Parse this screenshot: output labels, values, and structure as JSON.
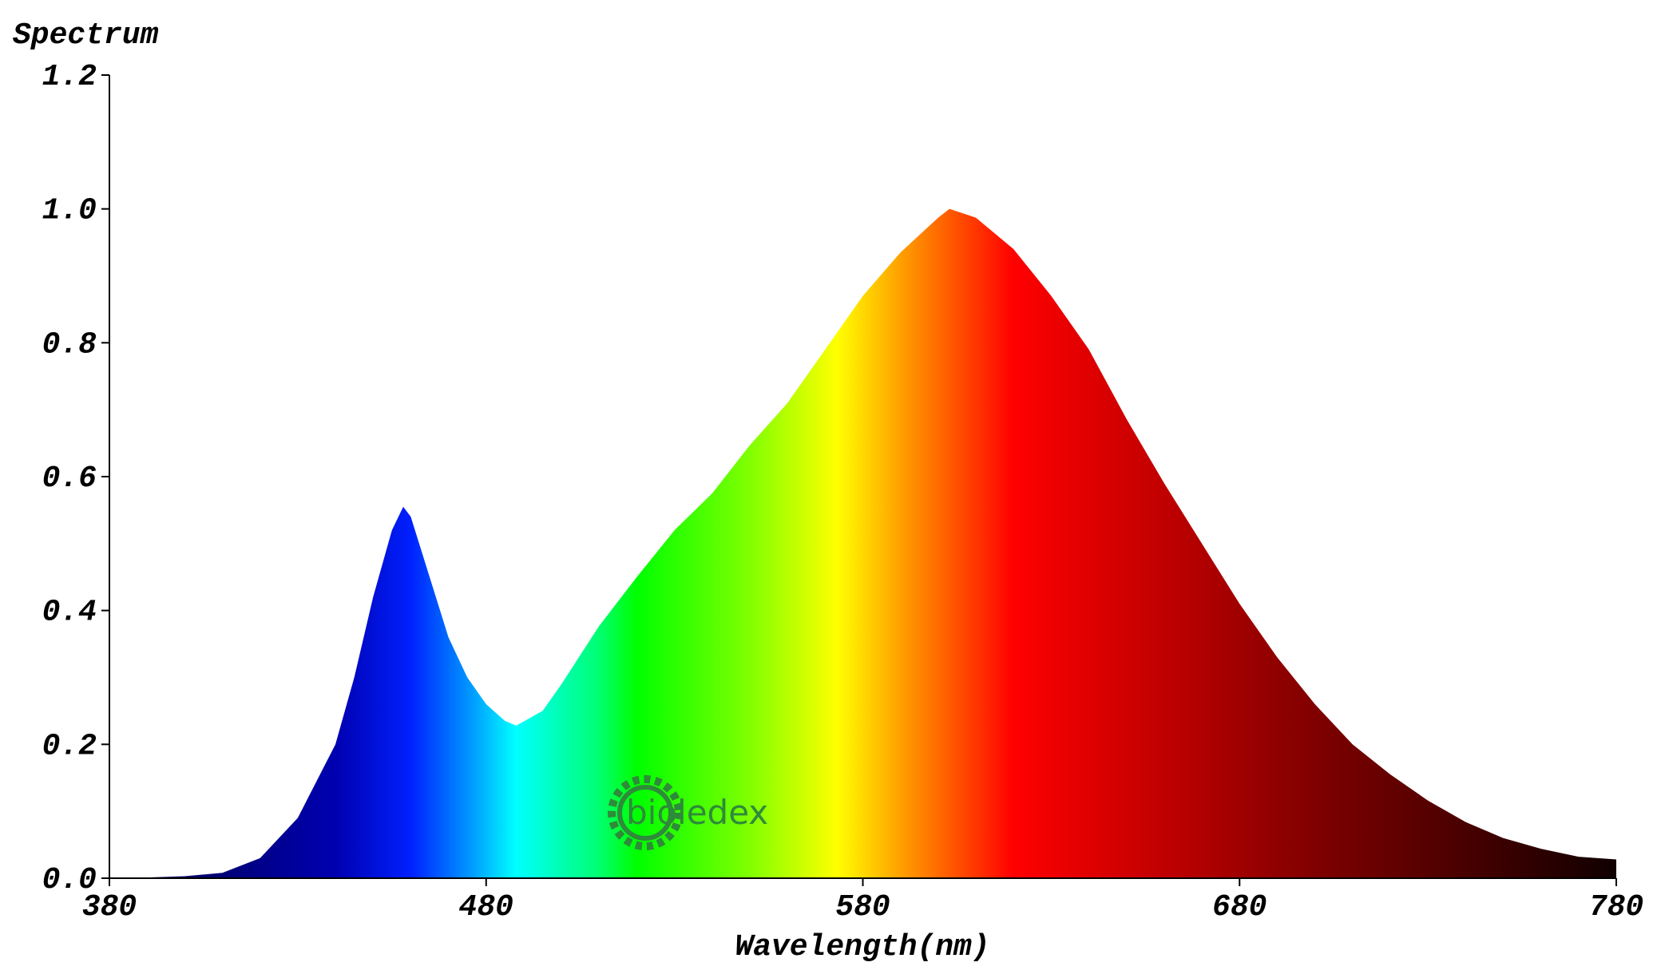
{
  "chart_data": {
    "type": "area",
    "title": "Spectrum",
    "xlabel": "Wavelength(nm)",
    "watermark": "bioledex",
    "x": [
      380,
      390,
      400,
      410,
      420,
      430,
      440,
      445,
      450,
      455,
      458,
      460,
      465,
      470,
      475,
      480,
      485,
      488,
      495,
      500,
      510,
      520,
      530,
      540,
      550,
      560,
      570,
      580,
      590,
      600,
      603,
      610,
      620,
      630,
      640,
      650,
      660,
      670,
      680,
      690,
      700,
      710,
      720,
      730,
      740,
      750,
      760,
      770,
      780
    ],
    "values": [
      0,
      0.001,
      0.003,
      0.008,
      0.03,
      0.09,
      0.2,
      0.3,
      0.42,
      0.52,
      0.555,
      0.54,
      0.45,
      0.36,
      0.3,
      0.26,
      0.235,
      0.228,
      0.25,
      0.29,
      0.377,
      0.45,
      0.52,
      0.575,
      0.647,
      0.71,
      0.79,
      0.87,
      0.935,
      0.987,
      1.0,
      0.987,
      0.94,
      0.87,
      0.79,
      0.686,
      0.59,
      0.5,
      0.41,
      0.33,
      0.26,
      0.2,
      0.155,
      0.116,
      0.084,
      0.06,
      0.044,
      0.032,
      0.028
    ],
    "xlim": [
      380,
      780
    ],
    "xticks": [
      380,
      480,
      580,
      680,
      780
    ],
    "ylim": [
      0,
      1.2
    ],
    "yticks": [
      {
        "value": 0,
        "label": "0.0"
      },
      0.2,
      0.4,
      0.6,
      0.8,
      {
        "value": 1,
        "label": "1.0"
      },
      1.2
    ],
    "grid": false
  }
}
